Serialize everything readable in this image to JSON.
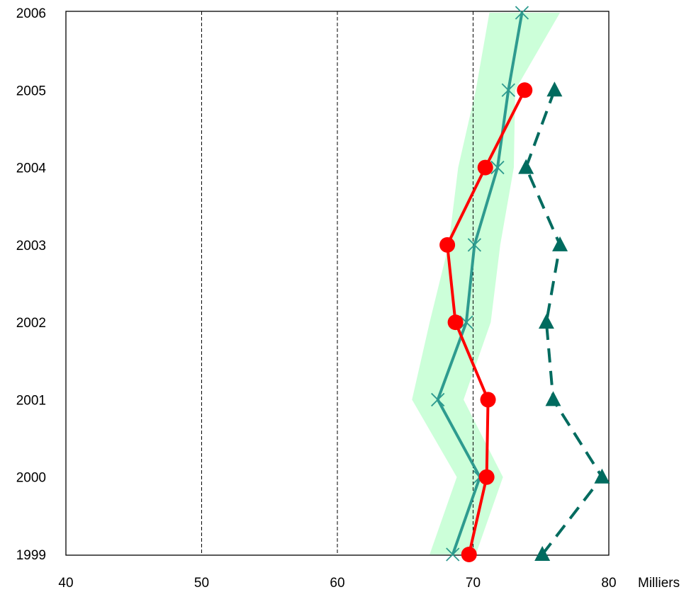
{
  "chart_data": {
    "type": "line",
    "orientation": "horizontal",
    "title": "",
    "xlabel": "Milliers",
    "ylabel": "",
    "xlim": [
      40,
      80
    ],
    "x_ticks": [
      "40",
      "50",
      "60",
      "70",
      "80"
    ],
    "y_categories": [
      "1999",
      "2000",
      "2001",
      "2002",
      "2003",
      "2004",
      "2005",
      "2006"
    ],
    "grid": "vertical dashed lines at 50, 60, 70",
    "legend": "none",
    "band": {
      "color": "#ccffd9",
      "lower": [
        66.8,
        68.8,
        65.5,
        66.8,
        68.2,
        68.9,
        70.2,
        71.2
      ],
      "upper": [
        70.2,
        72.2,
        69.3,
        71.3,
        72.0,
        73.0,
        73.1,
        76.4
      ]
    },
    "series": [
      {
        "color": "#2e9b8f",
        "marker": "x",
        "style": "solid",
        "values": [
          68.5,
          70.5,
          67.4,
          69.5,
          70.1,
          71.8,
          72.6,
          73.6
        ]
      },
      {
        "color": "#ff0000",
        "marker": "circle",
        "style": "solid",
        "values": [
          69.7,
          71.0,
          71.1,
          68.7,
          68.1,
          70.9,
          73.8,
          null
        ]
      },
      {
        "color": "#006b5f",
        "marker": "triangle",
        "style": "dashed",
        "values": [
          75.1,
          79.5,
          75.9,
          75.4,
          76.4,
          73.9,
          76.0,
          null
        ]
      }
    ]
  }
}
